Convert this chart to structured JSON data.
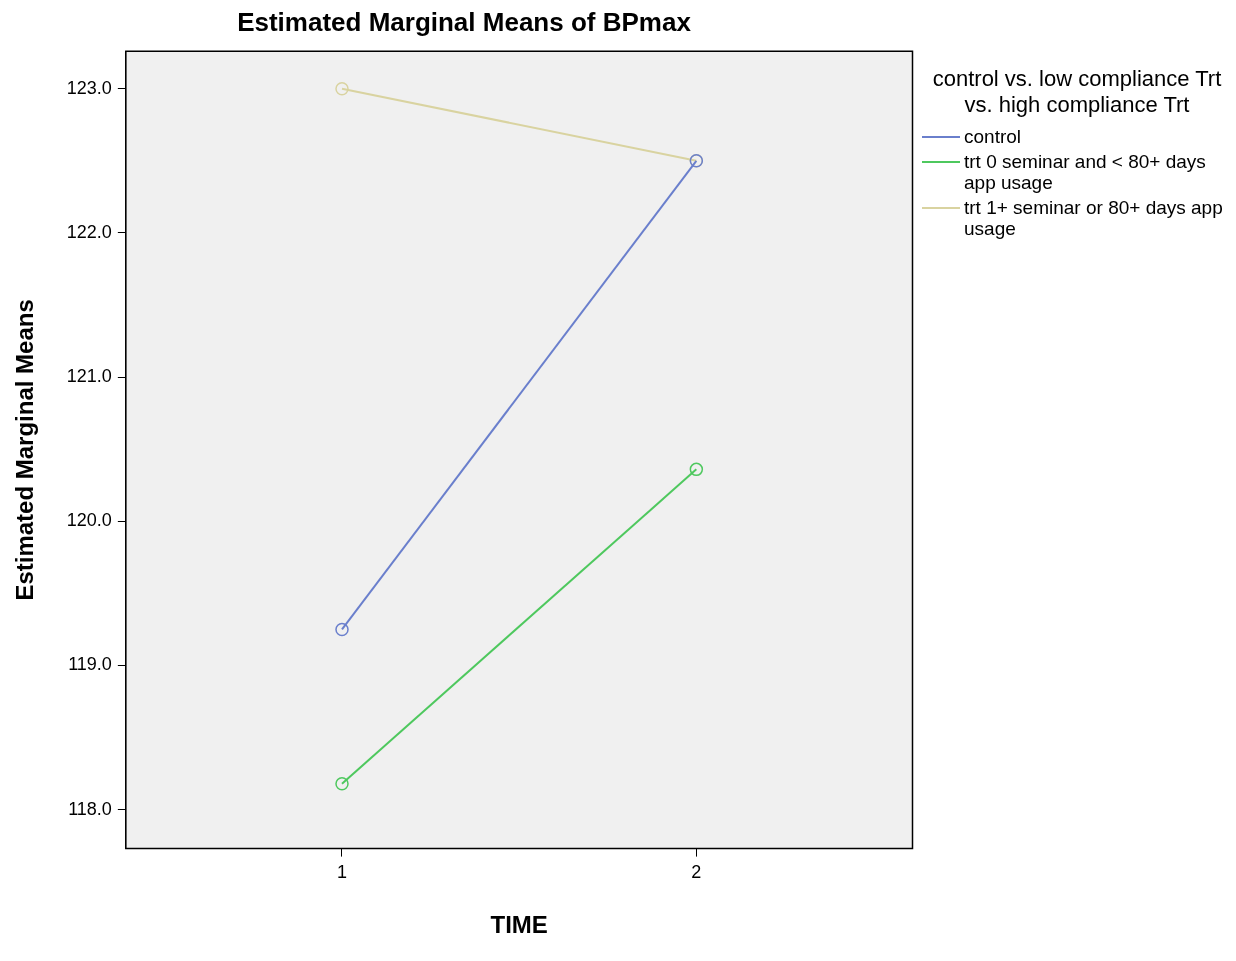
{
  "chart_data": {
    "type": "line",
    "title": "Estimated Marginal Means of BPmax",
    "xlabel": "TIME",
    "ylabel": "Estimated Marginal Means",
    "legend_title": "control vs. low compliance Trt vs. high compliance Trt",
    "x": [
      1,
      2
    ],
    "xlim": [
      0.39,
      2.61
    ],
    "xticks": [
      1,
      2
    ],
    "ylim": [
      117.73,
      123.26
    ],
    "yticks": [
      {
        "value": 118,
        "label": "118.0"
      },
      {
        "value": 119,
        "label": "119.0"
      },
      {
        "value": 120,
        "label": "120.0"
      },
      {
        "value": 121,
        "label": "121.0"
      },
      {
        "value": 122,
        "label": "122.0"
      },
      {
        "value": 123,
        "label": "123.0"
      }
    ],
    "series": [
      {
        "name": "control",
        "color": "#6a7fcc",
        "values": [
          119.25,
          122.5
        ]
      },
      {
        "name": "trt 0 seminar and < 80+ days app usage",
        "color": "#4ec85e",
        "values": [
          118.18,
          120.36
        ]
      },
      {
        "name": "trt 1+ seminar or 80+ days app usage",
        "color": "#d9d3a0",
        "values": [
          123.0,
          122.5
        ]
      }
    ],
    "grid": false,
    "legend": "right",
    "marker": "circle",
    "line_style": "solid"
  }
}
